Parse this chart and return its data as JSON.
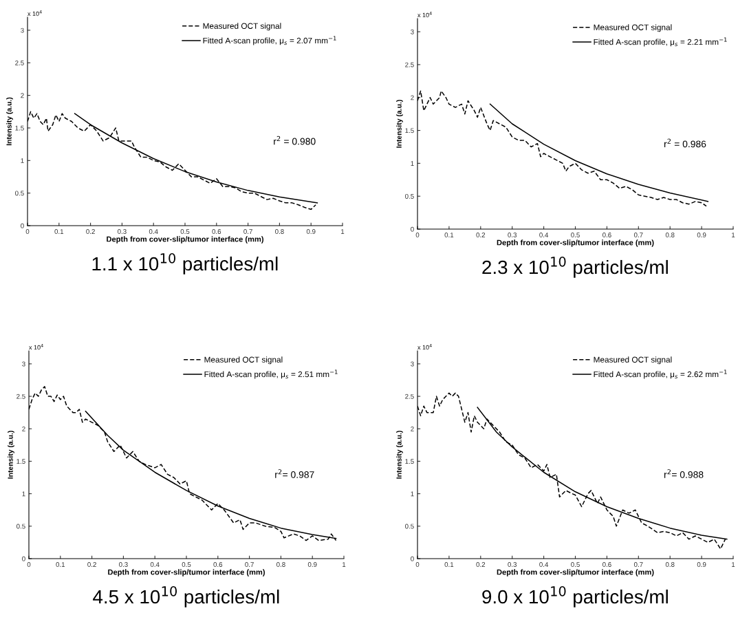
{
  "chart_data": [
    {
      "type": "line",
      "title": "1.1 x 10$^{10}$ particles/ml",
      "xlabel": "Depth from cover-slip/tumor interface (mm)",
      "ylabel": "Intensity (a.u.)",
      "annotations": [
        "x 10$^{4}$",
        "r$^{2}$ = 0.980"
      ],
      "xlim": [
        0,
        1
      ],
      "xticks": [
        0,
        0.1,
        0.2,
        0.3,
        0.4,
        0.5,
        0.6,
        0.7,
        0.8,
        0.9,
        1
      ],
      "ylim": [
        0,
        3.2
      ],
      "yticks": [
        0,
        0.5,
        1,
        1.5,
        2,
        2.5,
        3
      ],
      "grid": false,
      "legend": "top right",
      "marker": "none",
      "series": [
        {
          "name": "Measured OCT signal",
          "color": "#000000",
          "line_style": "dashed",
          "x": [
            0,
            0.01,
            0.02,
            0.03,
            0.04,
            0.05,
            0.06,
            0.065,
            0.08,
            0.09,
            0.1,
            0.11,
            0.12,
            0.14,
            0.16,
            0.18,
            0.2,
            0.22,
            0.24,
            0.26,
            0.28,
            0.29,
            0.31,
            0.33,
            0.34,
            0.36,
            0.38,
            0.4,
            0.42,
            0.44,
            0.46,
            0.48,
            0.5,
            0.52,
            0.54,
            0.56,
            0.58,
            0.6,
            0.62,
            0.64,
            0.66,
            0.68,
            0.7,
            0.72,
            0.74,
            0.76,
            0.78,
            0.8,
            0.82,
            0.84,
            0.86,
            0.88,
            0.9,
            0.915
          ],
          "values": [
            1.6,
            1.75,
            1.65,
            1.72,
            1.6,
            1.55,
            1.65,
            1.45,
            1.55,
            1.7,
            1.6,
            1.72,
            1.65,
            1.6,
            1.5,
            1.45,
            1.55,
            1.45,
            1.3,
            1.35,
            1.5,
            1.3,
            1.3,
            1.3,
            1.2,
            1.05,
            1.05,
            1.0,
            0.98,
            0.9,
            0.85,
            0.95,
            0.85,
            0.75,
            0.75,
            0.7,
            0.65,
            0.72,
            0.6,
            0.6,
            0.58,
            0.52,
            0.5,
            0.5,
            0.45,
            0.4,
            0.42,
            0.38,
            0.35,
            0.35,
            0.32,
            0.28,
            0.25,
            0.32
          ]
        },
        {
          "name": "Fitted A-scan profile, μ$_{s}$ = 2.07 mm$^{−1}$",
          "color": "#000000",
          "line_style": "solid",
          "x": [
            0.15,
            0.2,
            0.3,
            0.4,
            0.5,
            0.6,
            0.7,
            0.8,
            0.92
          ],
          "values": [
            1.72,
            1.55,
            1.27,
            1.03,
            0.83,
            0.67,
            0.54,
            0.44,
            0.35
          ]
        }
      ]
    },
    {
      "type": "line",
      "title": "2.3 x 10$^{10}$ particles/ml",
      "xlabel": "Depth from cover-slip/tumor interface (mm)",
      "ylabel": "Intensity (a.u.)",
      "annotations": [
        "x 10$^{4}$",
        "r$^{2}$ = 0.986"
      ],
      "xlim": [
        0,
        1
      ],
      "xticks": [
        0,
        0.1,
        0.2,
        0.3,
        0.4,
        0.5,
        0.6,
        0.7,
        0.8,
        0.9,
        1
      ],
      "ylim": [
        0,
        3.2
      ],
      "yticks": [
        0,
        0.5,
        1,
        1.5,
        2,
        2.5,
        3
      ],
      "grid": false,
      "legend": "top right",
      "marker": "none",
      "series": [
        {
          "name": "Measured OCT signal",
          "color": "#000000",
          "line_style": "dashed",
          "x": [
            0,
            0.01,
            0.02,
            0.03,
            0.04,
            0.05,
            0.06,
            0.07,
            0.075,
            0.09,
            0.1,
            0.12,
            0.14,
            0.15,
            0.16,
            0.18,
            0.19,
            0.2,
            0.22,
            0.23,
            0.24,
            0.26,
            0.28,
            0.3,
            0.32,
            0.34,
            0.36,
            0.38,
            0.39,
            0.4,
            0.42,
            0.44,
            0.46,
            0.47,
            0.48,
            0.5,
            0.52,
            0.54,
            0.56,
            0.58,
            0.6,
            0.62,
            0.64,
            0.66,
            0.68,
            0.7,
            0.72,
            0.74,
            0.76,
            0.78,
            0.8,
            0.82,
            0.84,
            0.86,
            0.88,
            0.9,
            0.915
          ],
          "values": [
            1.95,
            2.1,
            1.8,
            1.9,
            2.0,
            1.9,
            1.95,
            2.0,
            2.1,
            2.0,
            1.9,
            1.85,
            1.9,
            1.75,
            1.95,
            1.8,
            1.7,
            1.85,
            1.6,
            1.5,
            1.65,
            1.6,
            1.55,
            1.4,
            1.35,
            1.35,
            1.25,
            1.3,
            1.1,
            1.15,
            1.1,
            1.05,
            1.0,
            0.88,
            0.95,
            1.0,
            0.9,
            0.85,
            0.88,
            0.75,
            0.75,
            0.7,
            0.62,
            0.65,
            0.6,
            0.52,
            0.5,
            0.48,
            0.45,
            0.48,
            0.45,
            0.45,
            0.4,
            0.38,
            0.42,
            0.4,
            0.35
          ]
        },
        {
          "name": "Fitted A-scan profile, μ$_{s}$ = 2.21 mm$^{−1}$",
          "color": "#000000",
          "line_style": "solid",
          "x": [
            0.23,
            0.3,
            0.4,
            0.5,
            0.6,
            0.7,
            0.8,
            0.92
          ],
          "values": [
            1.9,
            1.6,
            1.29,
            1.04,
            0.84,
            0.68,
            0.55,
            0.42
          ]
        }
      ]
    },
    {
      "type": "line",
      "title": "4.5 x 10$^{10}$ particles/ml",
      "xlabel": "Depth from cover-slip/tumor interface (mm)",
      "ylabel": "Intensity (a.u.)",
      "annotations": [
        "x 10$^{4}$",
        "r$^{2}$= 0.987"
      ],
      "xlim": [
        0,
        1
      ],
      "xticks": [
        0,
        0.1,
        0.2,
        0.3,
        0.4,
        0.5,
        0.6,
        0.7,
        0.8,
        0.9,
        1
      ],
      "ylim": [
        0,
        3.2
      ],
      "yticks": [
        0,
        0.5,
        1,
        1.5,
        2,
        2.5,
        3
      ],
      "grid": false,
      "legend": "top right",
      "marker": "none",
      "series": [
        {
          "name": "Measured OCT signal",
          "color": "#000000",
          "line_style": "dashed",
          "x": [
            0,
            0.01,
            0.02,
            0.03,
            0.04,
            0.05,
            0.06,
            0.07,
            0.08,
            0.09,
            0.1,
            0.11,
            0.12,
            0.13,
            0.14,
            0.15,
            0.16,
            0.17,
            0.18,
            0.2,
            0.22,
            0.24,
            0.25,
            0.27,
            0.29,
            0.31,
            0.33,
            0.35,
            0.37,
            0.4,
            0.42,
            0.44,
            0.46,
            0.48,
            0.5,
            0.51,
            0.53,
            0.55,
            0.58,
            0.6,
            0.62,
            0.65,
            0.67,
            0.68,
            0.7,
            0.72,
            0.75,
            0.78,
            0.8,
            0.81,
            0.84,
            0.86,
            0.88,
            0.9,
            0.92,
            0.95,
            0.96,
            0.975
          ],
          "values": [
            2.3,
            2.45,
            2.55,
            2.5,
            2.6,
            2.65,
            2.5,
            2.5,
            2.42,
            2.52,
            2.45,
            2.5,
            2.35,
            2.3,
            2.25,
            2.25,
            2.3,
            2.1,
            2.15,
            2.1,
            2.05,
            1.95,
            1.8,
            1.65,
            1.75,
            1.55,
            1.65,
            1.5,
            1.45,
            1.4,
            1.45,
            1.3,
            1.25,
            1.15,
            1.2,
            1.0,
            0.95,
            0.9,
            0.75,
            0.85,
            0.75,
            0.55,
            0.6,
            0.45,
            0.55,
            0.55,
            0.5,
            0.48,
            0.42,
            0.32,
            0.38,
            0.35,
            0.28,
            0.35,
            0.28,
            0.3,
            0.38,
            0.28
          ]
        },
        {
          "name": "Fitted A-scan profile, μ$_{s}$ = 2.51 mm$^{−1}$",
          "color": "#000000",
          "line_style": "solid",
          "x": [
            0.18,
            0.25,
            0.3,
            0.4,
            0.5,
            0.6,
            0.7,
            0.8,
            0.9,
            0.975
          ],
          "values": [
            2.27,
            1.9,
            1.67,
            1.33,
            1.05,
            0.81,
            0.62,
            0.47,
            0.37,
            0.31
          ]
        }
      ]
    },
    {
      "type": "line",
      "title": "9.0 x 10$^{10}$ particles/ml",
      "xlabel": "Depth from cover-slip/tumor interface (mm)",
      "ylabel": "Intensity (a.u.)",
      "annotations": [
        "x 10$^{4}$",
        "r$^{2}$= 0.988"
      ],
      "xlim": [
        0,
        1
      ],
      "xticks": [
        0,
        0.1,
        0.2,
        0.3,
        0.4,
        0.5,
        0.6,
        0.7,
        0.8,
        0.9,
        1
      ],
      "ylim": [
        0,
        3.2
      ],
      "yticks": [
        0,
        0.5,
        1,
        1.5,
        2,
        2.5,
        3
      ],
      "grid": false,
      "legend": "top right",
      "marker": "none",
      "series": [
        {
          "name": "Measured OCT signal",
          "color": "#000000",
          "line_style": "dashed",
          "x": [
            0,
            0.01,
            0.02,
            0.03,
            0.05,
            0.06,
            0.07,
            0.08,
            0.09,
            0.1,
            0.11,
            0.12,
            0.13,
            0.14,
            0.15,
            0.16,
            0.17,
            0.18,
            0.19,
            0.21,
            0.22,
            0.24,
            0.26,
            0.28,
            0.3,
            0.32,
            0.34,
            0.36,
            0.38,
            0.4,
            0.41,
            0.42,
            0.44,
            0.45,
            0.47,
            0.49,
            0.5,
            0.52,
            0.54,
            0.55,
            0.57,
            0.58,
            0.6,
            0.62,
            0.63,
            0.65,
            0.67,
            0.69,
            0.71,
            0.73,
            0.76,
            0.78,
            0.8,
            0.82,
            0.84,
            0.86,
            0.88,
            0.9,
            0.92,
            0.94,
            0.96,
            0.975
          ],
          "values": [
            2.35,
            2.2,
            2.35,
            2.25,
            2.25,
            2.5,
            2.35,
            2.45,
            2.5,
            2.55,
            2.5,
            2.55,
            2.5,
            2.3,
            2.1,
            2.25,
            1.95,
            2.2,
            2.1,
            2.0,
            2.15,
            2.05,
            1.95,
            1.8,
            1.75,
            1.6,
            1.55,
            1.4,
            1.45,
            1.35,
            1.45,
            1.25,
            1.3,
            0.95,
            1.05,
            1.0,
            0.98,
            0.8,
            1.0,
            1.05,
            0.85,
            0.95,
            0.75,
            0.65,
            0.5,
            0.75,
            0.7,
            0.75,
            0.55,
            0.5,
            0.4,
            0.42,
            0.4,
            0.35,
            0.4,
            0.3,
            0.35,
            0.3,
            0.25,
            0.3,
            0.15,
            0.3
          ]
        },
        {
          "name": "Fitted A-scan profile, μ$_{s}$ = 2.62 mm$^{−1}$",
          "color": "#000000",
          "line_style": "solid",
          "x": [
            0.19,
            0.25,
            0.3,
            0.4,
            0.5,
            0.6,
            0.7,
            0.8,
            0.9,
            0.98
          ],
          "values": [
            2.33,
            1.95,
            1.72,
            1.33,
            1.03,
            0.8,
            0.62,
            0.47,
            0.36,
            0.3
          ]
        }
      ]
    }
  ]
}
